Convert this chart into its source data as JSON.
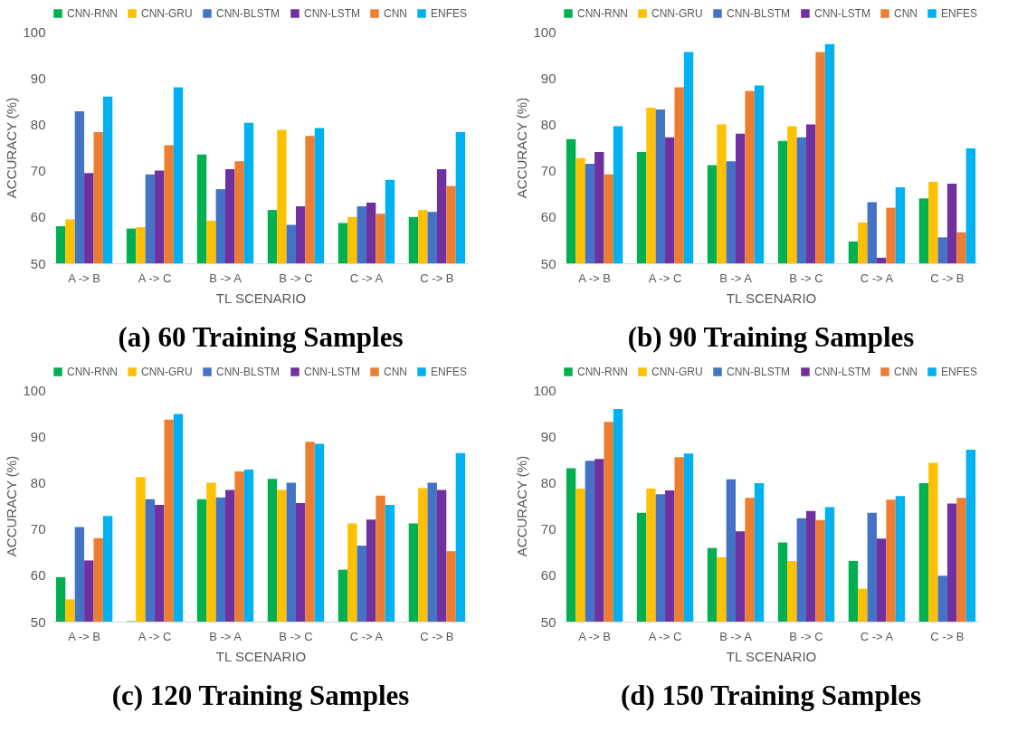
{
  "chart_data": [
    {
      "type": "bar",
      "title": "(a) 60 Training Samples",
      "xlabel": "TL SCENARIO",
      "ylabel": "ACCURACY (%)",
      "categories": [
        "A -> B",
        "A -> C",
        "B -> A",
        "B -> C",
        "C -> A",
        "C -> B"
      ],
      "ylim": [
        50,
        100
      ],
      "yticks": [
        50,
        60,
        70,
        80,
        90,
        100
      ],
      "grid": false,
      "legend": "top",
      "series": [
        {
          "name": "CNN-RNN",
          "color": "#00b050",
          "values": [
            58,
            57.5,
            73.5,
            61.5,
            58.7,
            60
          ]
        },
        {
          "name": "CNN-GRU",
          "color": "#ffc000",
          "values": [
            59.5,
            57.8,
            59.2,
            78.8,
            60,
            61.5
          ]
        },
        {
          "name": "CNN-BLSTM",
          "color": "#4472c4",
          "values": [
            82.8,
            69.2,
            66,
            58.3,
            62.3,
            61.1
          ]
        },
        {
          "name": "CNN-LSTM",
          "color": "#7030a0",
          "values": [
            69.5,
            70,
            70.3,
            62.3,
            63.1,
            70.3
          ]
        },
        {
          "name": "CNN",
          "color": "#ed7d31",
          "values": [
            78.3,
            75.5,
            72,
            77.5,
            60.7,
            66.7
          ]
        },
        {
          "name": "ENFES",
          "color": "#00b0f0",
          "values": [
            86,
            88,
            80.3,
            79.2,
            68,
            78.3
          ]
        }
      ]
    },
    {
      "type": "bar",
      "title": "(b) 90 Training Samples",
      "xlabel": "TL SCENARIO",
      "ylabel": "ACCURACY (%)",
      "categories": [
        "A -> B",
        "A -> C",
        "B -> A",
        "B -> C",
        "C -> A",
        "C -> B"
      ],
      "ylim": [
        50,
        100
      ],
      "yticks": [
        50,
        60,
        70,
        80,
        90,
        100
      ],
      "grid": false,
      "legend": "top",
      "series": [
        {
          "name": "CNN-RNN",
          "color": "#00b050",
          "values": [
            76.8,
            74,
            71.2,
            76.4,
            54.7,
            64
          ]
        },
        {
          "name": "CNN-GRU",
          "color": "#ffc000",
          "values": [
            72.7,
            83.6,
            80,
            79.6,
            58.8,
            67.6
          ]
        },
        {
          "name": "CNN-BLSTM",
          "color": "#4472c4",
          "values": [
            71.5,
            83.2,
            72,
            77.2,
            63.2,
            55.6
          ]
        },
        {
          "name": "CNN-LSTM",
          "color": "#7030a0",
          "values": [
            74,
            77.2,
            78,
            80,
            51.2,
            67.2
          ]
        },
        {
          "name": "CNN",
          "color": "#ed7d31",
          "values": [
            69.2,
            88,
            87.2,
            95.6,
            62,
            56.7
          ]
        },
        {
          "name": "ENFES",
          "color": "#00b0f0",
          "values": [
            79.6,
            95.6,
            88.4,
            97.3,
            66.4,
            74.8
          ]
        }
      ]
    },
    {
      "type": "bar",
      "title": "(c) 120 Training Samples",
      "xlabel": "TL SCENARIO",
      "ylabel": "ACCURACY (%)",
      "categories": [
        "A -> B",
        "A -> C",
        "B -> A",
        "B -> C",
        "C -> A",
        "C -> B"
      ],
      "ylim": [
        50,
        100
      ],
      "yticks": [
        50,
        60,
        70,
        80,
        90,
        100
      ],
      "grid": false,
      "legend": "top",
      "series": [
        {
          "name": "CNN-RNN",
          "color": "#00b050",
          "values": [
            59.6,
            50.1,
            76.4,
            80.8,
            61.2,
            71.2
          ]
        },
        {
          "name": "CNN-GRU",
          "color": "#ffc000",
          "values": [
            54.8,
            81.2,
            80,
            78.4,
            71.2,
            78.8
          ]
        },
        {
          "name": "CNN-BLSTM",
          "color": "#4472c4",
          "values": [
            70.4,
            76.4,
            76.8,
            80,
            66.4,
            80
          ]
        },
        {
          "name": "CNN-LSTM",
          "color": "#7030a0",
          "values": [
            63.2,
            75.2,
            78.4,
            75.6,
            72,
            78.4
          ]
        },
        {
          "name": "CNN",
          "color": "#ed7d31",
          "values": [
            68,
            93.6,
            82.4,
            88.8,
            77.2,
            65.2
          ]
        },
        {
          "name": "ENFES",
          "color": "#00b0f0",
          "values": [
            72.8,
            94.8,
            82.8,
            88.4,
            75.2,
            86.4
          ]
        }
      ]
    },
    {
      "type": "bar",
      "title": "(d) 150 Training Samples",
      "xlabel": "TL SCENARIO",
      "ylabel": "ACCURACY (%)",
      "categories": [
        "A -> B",
        "A -> C",
        "B -> A",
        "B -> C",
        "C -> A",
        "C -> B"
      ],
      "ylim": [
        50,
        100
      ],
      "yticks": [
        50,
        60,
        70,
        80,
        90,
        100
      ],
      "grid": false,
      "legend": "top",
      "series": [
        {
          "name": "CNN-RNN",
          "color": "#00b050",
          "values": [
            83.1,
            73.5,
            65.9,
            67.1,
            63.1,
            79.9
          ]
        },
        {
          "name": "CNN-GRU",
          "color": "#ffc000",
          "values": [
            78.7,
            78.7,
            63.9,
            63.1,
            57.1,
            84.3
          ]
        },
        {
          "name": "CNN-BLSTM",
          "color": "#4472c4",
          "values": [
            84.7,
            77.5,
            80.7,
            72.3,
            73.5,
            59.9
          ]
        },
        {
          "name": "CNN-LSTM",
          "color": "#7030a0",
          "values": [
            85.1,
            78.3,
            69.5,
            73.9,
            67.9,
            75.5
          ]
        },
        {
          "name": "CNN",
          "color": "#ed7d31",
          "values": [
            93.1,
            85.5,
            76.7,
            71.9,
            76.3,
            76.7
          ]
        },
        {
          "name": "ENFES",
          "color": "#00b0f0",
          "values": [
            95.9,
            86.3,
            79.9,
            74.7,
            77.1,
            87.1
          ]
        }
      ]
    }
  ]
}
